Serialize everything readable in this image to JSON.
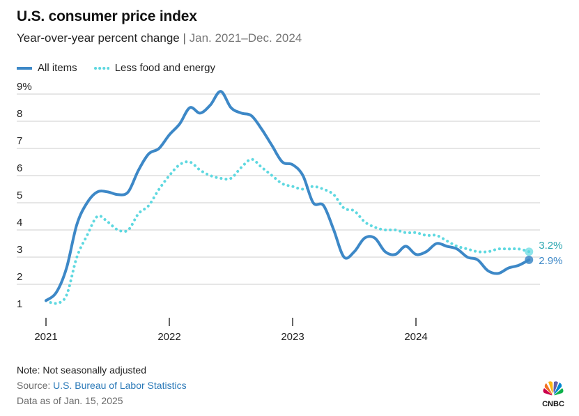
{
  "header": {
    "title": "U.S. consumer price index",
    "subtitle": "Year-over-year percent change",
    "separator": "|",
    "date_range": "Jan. 2021–Dec. 2024"
  },
  "colors": {
    "all_items": "#3d88c7",
    "core": "#5ed8e0",
    "grid": "#cccccc",
    "label_text": "#3d88c7",
    "core_label_text": "#2aa6b0"
  },
  "footer": {
    "note": "Note: Not seasonally adjusted",
    "source_label": "Source:",
    "source_link": "U.S. Bureau of Labor Statistics",
    "data_as_of": "Data as of Jan. 15, 2025"
  },
  "logo": {
    "text": "CNBC",
    "icon": "nbc-peacock-icon"
  },
  "chart_data": {
    "type": "line",
    "title": "U.S. consumer price index",
    "subtitle": "Year-over-year percent change | Jan. 2021–Dec. 2024",
    "xlabel": "",
    "ylabel": "",
    "x_start": "2021-01",
    "x_end": "2024-12",
    "x_ticks": [
      "2021",
      "2022",
      "2023",
      "2024"
    ],
    "y_ticks": [
      "1",
      "2",
      "3",
      "4",
      "5",
      "6",
      "7",
      "8",
      "9%"
    ],
    "ylim": [
      1,
      9
    ],
    "grid": true,
    "legend_position": "top-left",
    "x": [
      "2021-01",
      "2021-02",
      "2021-03",
      "2021-04",
      "2021-05",
      "2021-06",
      "2021-07",
      "2021-08",
      "2021-09",
      "2021-10",
      "2021-11",
      "2021-12",
      "2022-01",
      "2022-02",
      "2022-03",
      "2022-04",
      "2022-05",
      "2022-06",
      "2022-07",
      "2022-08",
      "2022-09",
      "2022-10",
      "2022-11",
      "2022-12",
      "2023-01",
      "2023-02",
      "2023-03",
      "2023-04",
      "2023-05",
      "2023-06",
      "2023-07",
      "2023-08",
      "2023-09",
      "2023-10",
      "2023-11",
      "2023-12",
      "2024-01",
      "2024-02",
      "2024-03",
      "2024-04",
      "2024-05",
      "2024-06",
      "2024-07",
      "2024-08",
      "2024-09",
      "2024-10",
      "2024-11",
      "2024-12"
    ],
    "series": [
      {
        "name": "All items",
        "style": "solid",
        "values": [
          1.4,
          1.7,
          2.6,
          4.2,
          5.0,
          5.4,
          5.4,
          5.3,
          5.4,
          6.2,
          6.8,
          7.0,
          7.5,
          7.9,
          8.5,
          8.3,
          8.6,
          9.1,
          8.5,
          8.3,
          8.2,
          7.7,
          7.1,
          6.5,
          6.4,
          6.0,
          5.0,
          4.9,
          4.0,
          3.0,
          3.2,
          3.7,
          3.7,
          3.2,
          3.1,
          3.4,
          3.1,
          3.2,
          3.5,
          3.4,
          3.3,
          3.0,
          2.9,
          2.5,
          2.4,
          2.6,
          2.7,
          2.9
        ]
      },
      {
        "name": "Less food and energy",
        "style": "dotted",
        "values": [
          1.4,
          1.3,
          1.6,
          3.0,
          3.8,
          4.5,
          4.3,
          4.0,
          4.0,
          4.6,
          4.9,
          5.5,
          6.0,
          6.4,
          6.5,
          6.2,
          6.0,
          5.9,
          5.9,
          6.3,
          6.6,
          6.3,
          6.0,
          5.7,
          5.6,
          5.5,
          5.6,
          5.5,
          5.3,
          4.8,
          4.7,
          4.3,
          4.1,
          4.0,
          4.0,
          3.9,
          3.9,
          3.8,
          3.8,
          3.6,
          3.4,
          3.3,
          3.2,
          3.2,
          3.3,
          3.3,
          3.3,
          3.2
        ]
      }
    ],
    "end_labels": [
      "2.9%",
      "3.2%"
    ]
  }
}
